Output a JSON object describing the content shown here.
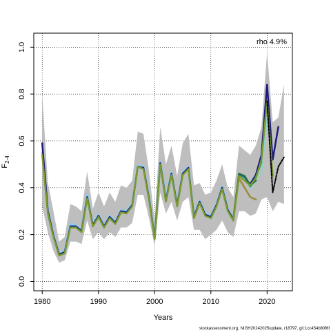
{
  "chart_data": {
    "type": "line",
    "title": "",
    "xlabel": "Years",
    "ylabel_main": "F",
    "ylabel_sub": "2-4",
    "xlim": [
      1978.5,
      2024.5
    ],
    "ylim": [
      -0.04,
      1.06
    ],
    "xticks": [
      1980,
      1990,
      2000,
      2010,
      2020
    ],
    "yticks": [
      0.0,
      0.2,
      0.4,
      0.6,
      0.8,
      1.0
    ],
    "ytick_labels": [
      "0.0",
      "0.2",
      "0.4",
      "0.6",
      "0.8",
      "1.0"
    ],
    "grid": true,
    "annotation": "rho 4.9%",
    "watermark": "stockassessment.org, NIGH20242025update, r18797, git:1cc454b80f6f",
    "colors": {
      "band": "#bebebe",
      "main": "#7a9a30",
      "peel1": "#87ceeb",
      "peel_light": "#8fd3c6",
      "peel_teal": "#2e8b6e",
      "peel_dark": "#1d6b4f",
      "peel_navy": "#1c1a7a",
      "peel_olive": "#9a8c3a",
      "forecast": "#000000"
    },
    "band": {
      "x": [
        1980,
        1981,
        1982,
        1983,
        1984,
        1985,
        1986,
        1987,
        1988,
        1989,
        1990,
        1991,
        1992,
        1993,
        1994,
        1995,
        1996,
        1997,
        1998,
        1999,
        2000,
        2001,
        2002,
        2003,
        2004,
        2005,
        2006,
        2007,
        2008,
        2009,
        2010,
        2011,
        2012,
        2013,
        2014,
        2015,
        2016,
        2017,
        2018,
        2019,
        2020,
        2021,
        2022,
        2023
      ],
      "upper": [
        0.8,
        0.42,
        0.3,
        0.17,
        0.19,
        0.33,
        0.32,
        0.3,
        0.47,
        0.31,
        0.38,
        0.32,
        0.38,
        0.34,
        0.41,
        0.4,
        0.43,
        0.64,
        0.63,
        0.47,
        0.26,
        0.66,
        0.5,
        0.58,
        0.45,
        0.59,
        0.63,
        0.41,
        0.42,
        0.37,
        0.38,
        0.43,
        0.5,
        0.4,
        0.36,
        0.58,
        0.56,
        0.54,
        0.58,
        0.66,
        0.98,
        0.68,
        0.7,
        0.84
      ],
      "lower": [
        0.32,
        0.21,
        0.13,
        0.08,
        0.09,
        0.17,
        0.17,
        0.16,
        0.26,
        0.18,
        0.21,
        0.18,
        0.21,
        0.19,
        0.23,
        0.23,
        0.25,
        0.37,
        0.37,
        0.27,
        0.15,
        0.38,
        0.29,
        0.34,
        0.26,
        0.34,
        0.36,
        0.22,
        0.22,
        0.18,
        0.2,
        0.22,
        0.26,
        0.21,
        0.19,
        0.3,
        0.3,
        0.28,
        0.29,
        0.35,
        0.36,
        0.3,
        0.34,
        0.33
      ]
    },
    "series": [
      {
        "role": "peel-2014",
        "color_key": "peel1",
        "width": 3,
        "x": [
          1980,
          1981,
          1982,
          1983,
          1984,
          1985,
          1986,
          1987,
          1988,
          1989,
          1990,
          1991,
          1992,
          1993,
          1994,
          1995,
          1996,
          1997,
          1998,
          1999,
          2000,
          2001,
          2002,
          2003,
          2004,
          2005,
          2006,
          2007,
          2008,
          2009,
          2010,
          2011,
          2012,
          2013,
          2014
        ],
        "y": [
          0.55,
          0.31,
          0.2,
          0.12,
          0.13,
          0.245,
          0.24,
          0.22,
          0.37,
          0.245,
          0.285,
          0.24,
          0.28,
          0.255,
          0.305,
          0.3,
          0.33,
          0.495,
          0.49,
          0.36,
          0.19,
          0.51,
          0.36,
          0.465,
          0.33,
          0.465,
          0.49,
          0.28,
          0.345,
          0.29,
          0.28,
          0.33,
          0.405,
          0.31,
          0.27
        ]
      },
      {
        "role": "peel-navy",
        "color_key": "peel_navy",
        "width": 2.5,
        "x": [
          1980,
          1981,
          1982,
          1983,
          1984,
          1985,
          1986,
          1987,
          1988,
          1989,
          1990,
          1991,
          1992,
          1993,
          1994,
          1995,
          1996,
          1997,
          1998,
          1999,
          2000,
          2001,
          2002,
          2003,
          2004,
          2005,
          2006,
          2007,
          2008,
          2009,
          2010,
          2011,
          2012,
          2013,
          2014,
          2015,
          2016,
          2017,
          2018,
          2019,
          2020,
          2021,
          2022
        ],
        "y": [
          0.59,
          0.3,
          0.195,
          0.115,
          0.125,
          0.235,
          0.235,
          0.215,
          0.36,
          0.24,
          0.28,
          0.235,
          0.275,
          0.25,
          0.3,
          0.295,
          0.325,
          0.49,
          0.485,
          0.355,
          0.185,
          0.505,
          0.345,
          0.46,
          0.325,
          0.46,
          0.485,
          0.275,
          0.34,
          0.285,
          0.275,
          0.325,
          0.4,
          0.305,
          0.265,
          0.455,
          0.44,
          0.415,
          0.455,
          0.54,
          0.84,
          0.52,
          0.66
        ]
      },
      {
        "role": "peel-light",
        "color_key": "peel_light",
        "width": 2.5,
        "x": [
          2014,
          2015,
          2016,
          2017,
          2018,
          2019,
          2020
        ],
        "y": [
          0.27,
          0.45,
          0.435,
          0.4,
          0.43,
          0.47,
          0.7
        ]
      },
      {
        "role": "peel-teal",
        "color_key": "peel_teal",
        "width": 2.5,
        "x": [
          2014,
          2015,
          2016,
          2017,
          2018,
          2019
        ],
        "y": [
          0.27,
          0.46,
          0.445,
          0.405,
          0.445,
          0.51
        ]
      },
      {
        "role": "peel-dark",
        "color_key": "peel_dark",
        "width": 2.5,
        "x": [
          2014,
          2015,
          2016,
          2017,
          2018
        ],
        "y": [
          0.27,
          0.46,
          0.45,
          0.41,
          0.43
        ]
      },
      {
        "role": "peel-olive",
        "color_key": "peel_olive",
        "width": 2.5,
        "x": [
          2014,
          2015,
          2016,
          2017,
          2018
        ],
        "y": [
          0.27,
          0.44,
          0.4,
          0.36,
          0.35
        ]
      },
      {
        "role": "main",
        "color_key": "main",
        "width": 2.5,
        "x": [
          1980,
          1981,
          1982,
          1983,
          1984,
          1985,
          1986,
          1987,
          1988,
          1989,
          1990,
          1991,
          1992,
          1993,
          1994,
          1995,
          1996,
          1997,
          1998,
          1999,
          2000,
          2001,
          2002,
          2003,
          2004,
          2005,
          2006,
          2007,
          2008,
          2009,
          2010,
          2011,
          2012,
          2013,
          2014,
          2015,
          2016,
          2017,
          2018,
          2019,
          2020,
          2021
        ],
        "y": [
          0.54,
          0.29,
          0.19,
          0.11,
          0.12,
          0.23,
          0.23,
          0.21,
          0.355,
          0.235,
          0.275,
          0.23,
          0.27,
          0.245,
          0.295,
          0.29,
          0.32,
          0.49,
          0.48,
          0.35,
          0.18,
          0.5,
          0.34,
          0.455,
          0.32,
          0.455,
          0.48,
          0.27,
          0.335,
          0.28,
          0.27,
          0.32,
          0.395,
          0.3,
          0.26,
          0.45,
          0.43,
          0.41,
          0.44,
          0.52,
          0.77,
          0.45
        ]
      },
      {
        "role": "forecast",
        "color_key": "forecast",
        "width": 2,
        "dashed": true,
        "x": [
          2020,
          2021,
          2022,
          2023
        ],
        "y": [
          0.77,
          0.38,
          0.49,
          0.53
        ]
      }
    ]
  }
}
